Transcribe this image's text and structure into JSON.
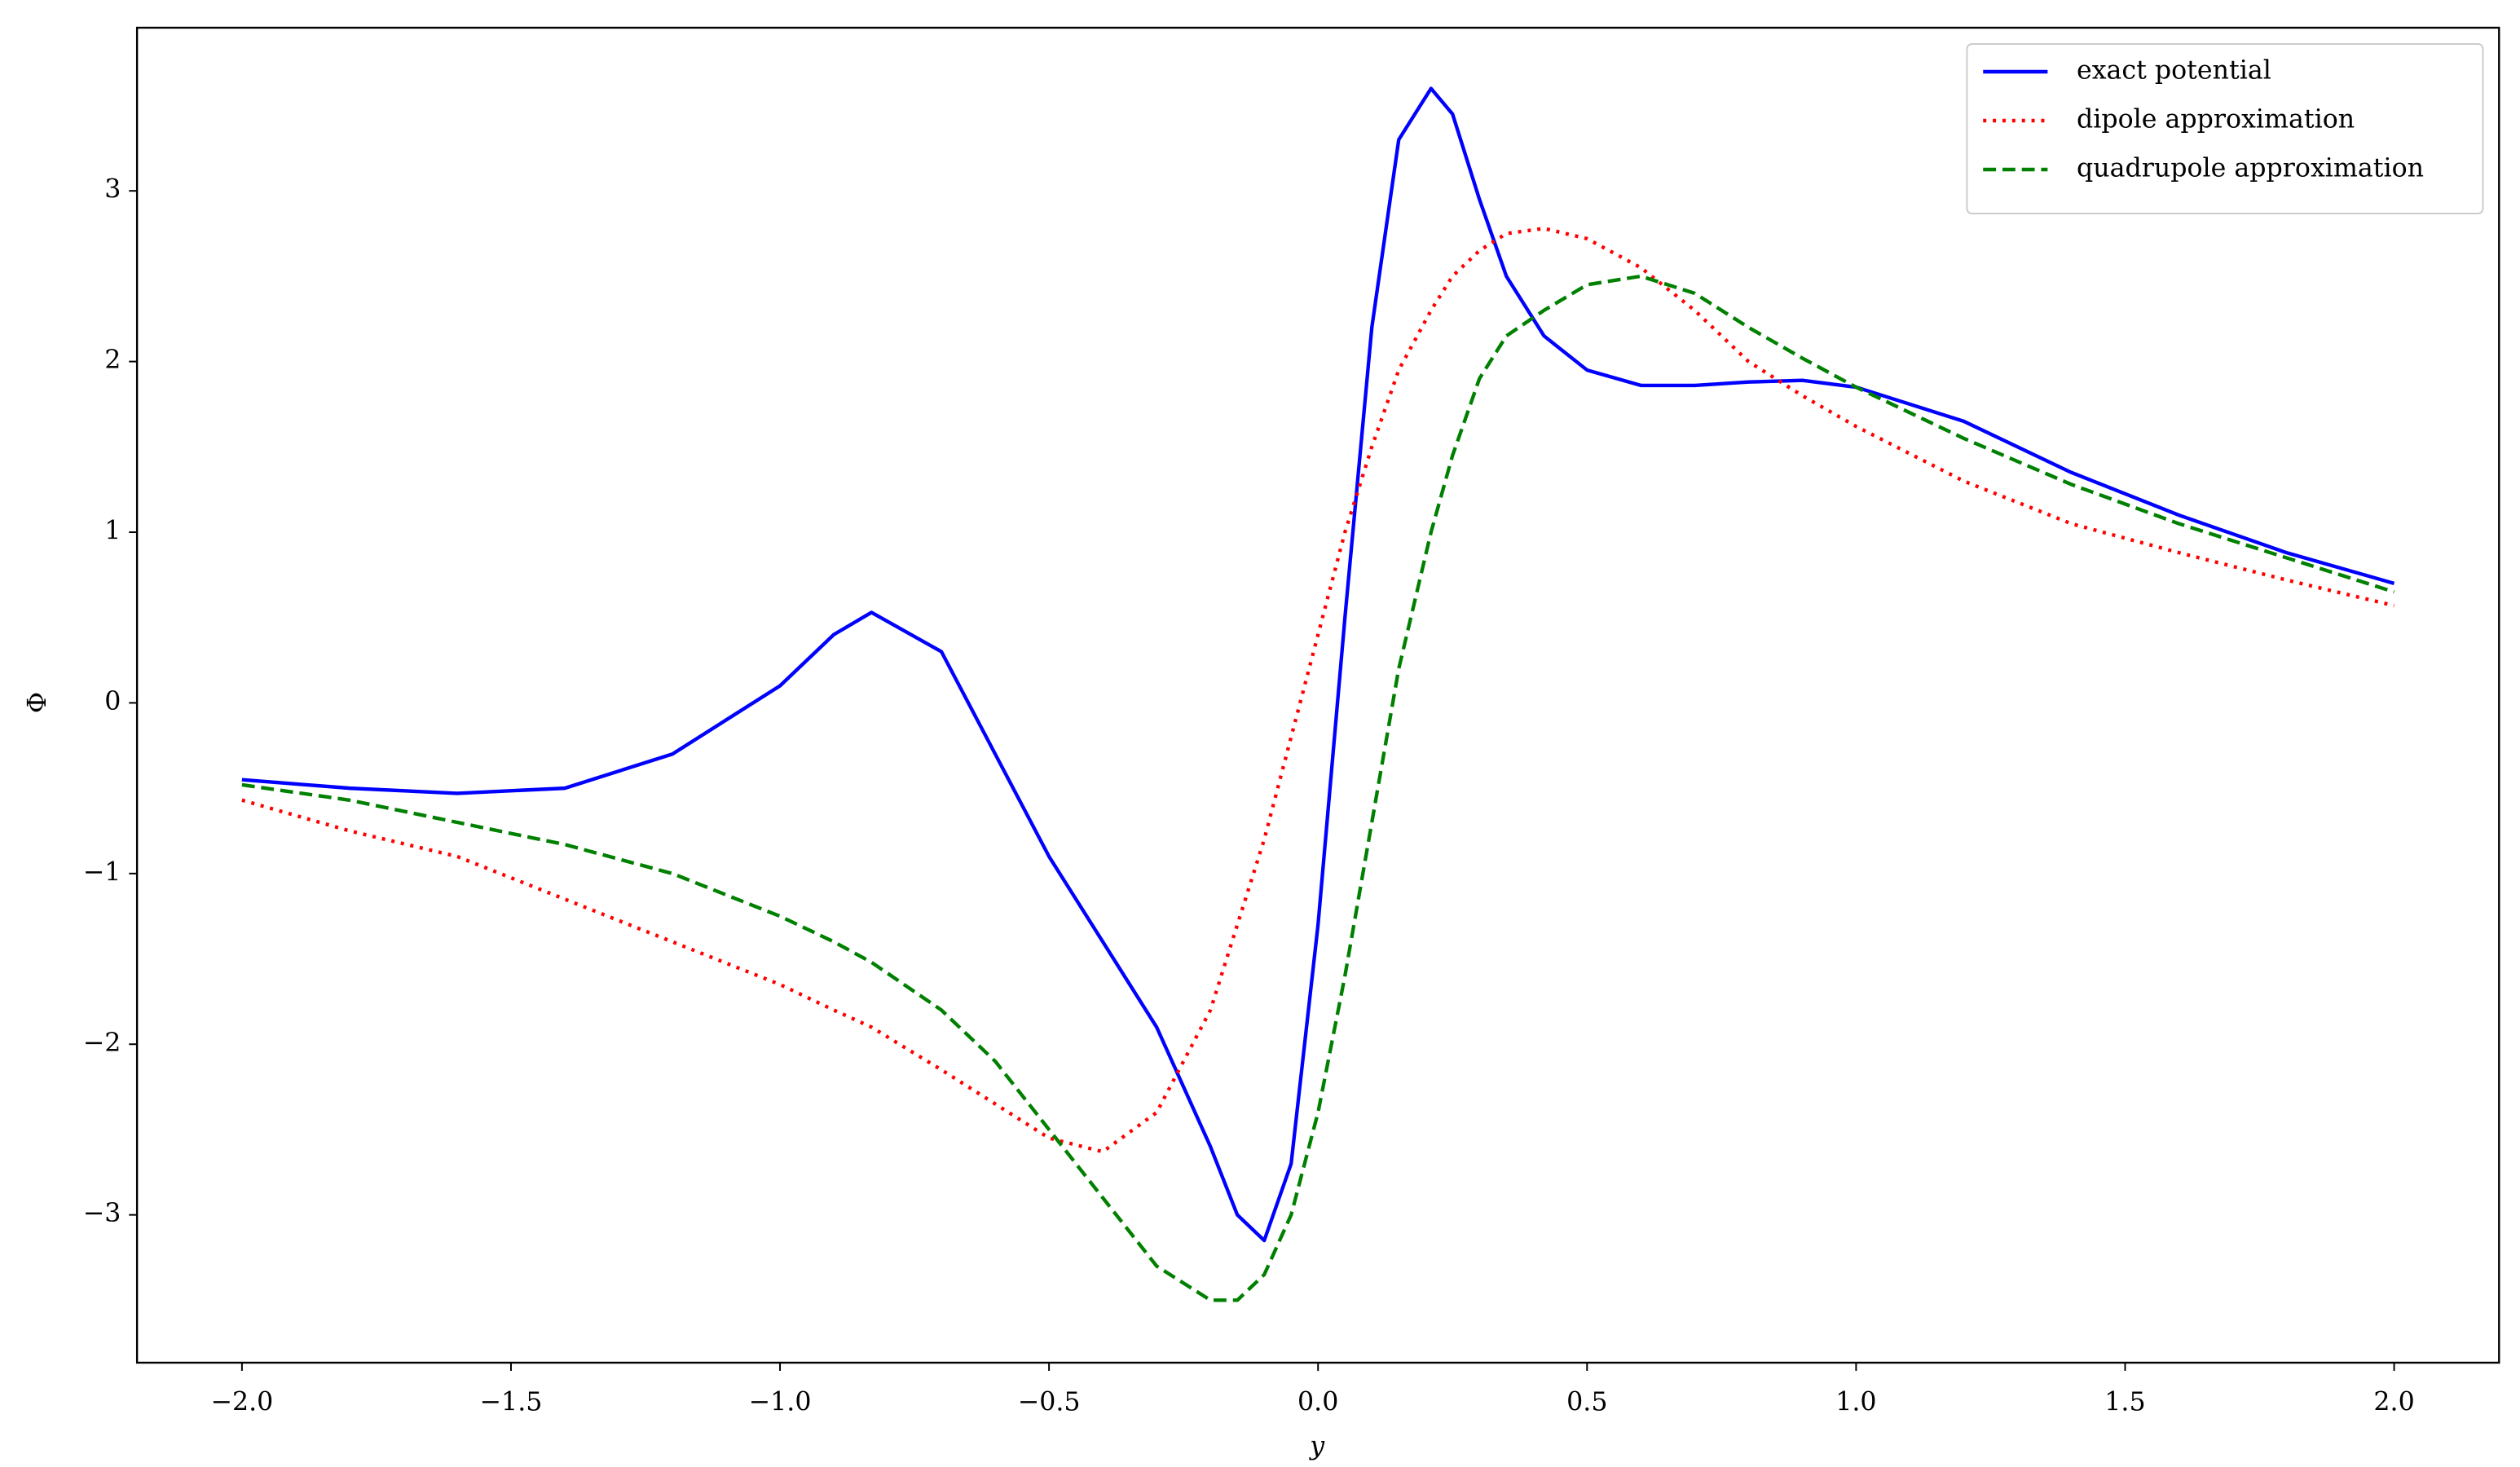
{
  "chart_data": {
    "type": "line",
    "xlabel": "y",
    "ylabel": "Φ",
    "x": [
      -2.0,
      -1.8,
      -1.6,
      -1.4,
      -1.2,
      -1.0,
      -0.9,
      -0.83,
      -0.7,
      -0.6,
      -0.5,
      -0.4,
      -0.3,
      -0.2,
      -0.15,
      -0.1,
      -0.05,
      0,
      0.05,
      0.1,
      0.15,
      0.21,
      0.25,
      0.3,
      0.35,
      0.42,
      0.5,
      0.6,
      0.7,
      0.8,
      0.9,
      1.0,
      1.2,
      1.4,
      1.6,
      1.8,
      2.0
    ],
    "series": [
      {
        "name": "exact potential",
        "color": "#0000ff",
        "linestyle": "solid",
        "values": [
          -0.45,
          -0.5,
          -0.53,
          -0.5,
          -0.3,
          0.1,
          0.4,
          0.53,
          0.3,
          -0.3,
          -0.9,
          -1.4,
          -1.9,
          -2.6,
          -3.0,
          -3.15,
          -2.7,
          -1.3,
          0.5,
          2.2,
          3.3,
          3.6,
          3.45,
          2.95,
          2.5,
          2.15,
          1.95,
          1.86,
          1.86,
          1.88,
          1.89,
          1.85,
          1.65,
          1.35,
          1.1,
          0.88,
          0.7
        ]
      },
      {
        "name": "dipole approximation",
        "color": "#ff0000",
        "linestyle": "dotted",
        "values": [
          -0.57,
          -0.75,
          -0.9,
          -1.15,
          -1.4,
          -1.65,
          -1.8,
          -1.9,
          -2.15,
          -2.35,
          -2.55,
          -2.63,
          -2.4,
          -1.8,
          -1.3,
          -0.8,
          -0.2,
          0.4,
          1.0,
          1.5,
          1.95,
          2.3,
          2.5,
          2.65,
          2.75,
          2.78,
          2.72,
          2.55,
          2.3,
          2.0,
          1.8,
          1.62,
          1.3,
          1.05,
          0.88,
          0.72,
          0.57
        ]
      },
      {
        "name": "quadrupole approximation",
        "color": "#008000",
        "linestyle": "dashed",
        "values": [
          -0.48,
          -0.57,
          -0.7,
          -0.83,
          -1.0,
          -1.25,
          -1.4,
          -1.52,
          -1.8,
          -2.1,
          -2.5,
          -2.9,
          -3.3,
          -3.5,
          -3.5,
          -3.35,
          -3.0,
          -2.4,
          -1.6,
          -0.7,
          0.2,
          1.0,
          1.45,
          1.9,
          2.15,
          2.3,
          2.45,
          2.5,
          2.4,
          2.2,
          2.02,
          1.85,
          1.55,
          1.28,
          1.05,
          0.85,
          0.65
        ]
      }
    ],
    "xlim": [
      -2.195,
      2.195
    ],
    "ylim": [
      -3.866,
      3.956
    ],
    "xticks": [
      {
        "value": -2.0,
        "label": "−2.0"
      },
      {
        "value": -1.5,
        "label": "−1.5"
      },
      {
        "value": -1.0,
        "label": "−1.0"
      },
      {
        "value": -0.5,
        "label": "−0.5"
      },
      {
        "value": 0,
        "label": "0.0"
      },
      {
        "value": 0.5,
        "label": "0.5"
      },
      {
        "value": 1.0,
        "label": "1.0"
      },
      {
        "value": 1.5,
        "label": "1.5"
      },
      {
        "value": 2.0,
        "label": "2.0"
      }
    ],
    "yticks": [
      {
        "value": -3,
        "label": "−3"
      },
      {
        "value": -2,
        "label": "−2"
      },
      {
        "value": -1,
        "label": "−1"
      },
      0,
      1,
      2,
      3
    ],
    "legend": "upper right",
    "grid": false
  }
}
